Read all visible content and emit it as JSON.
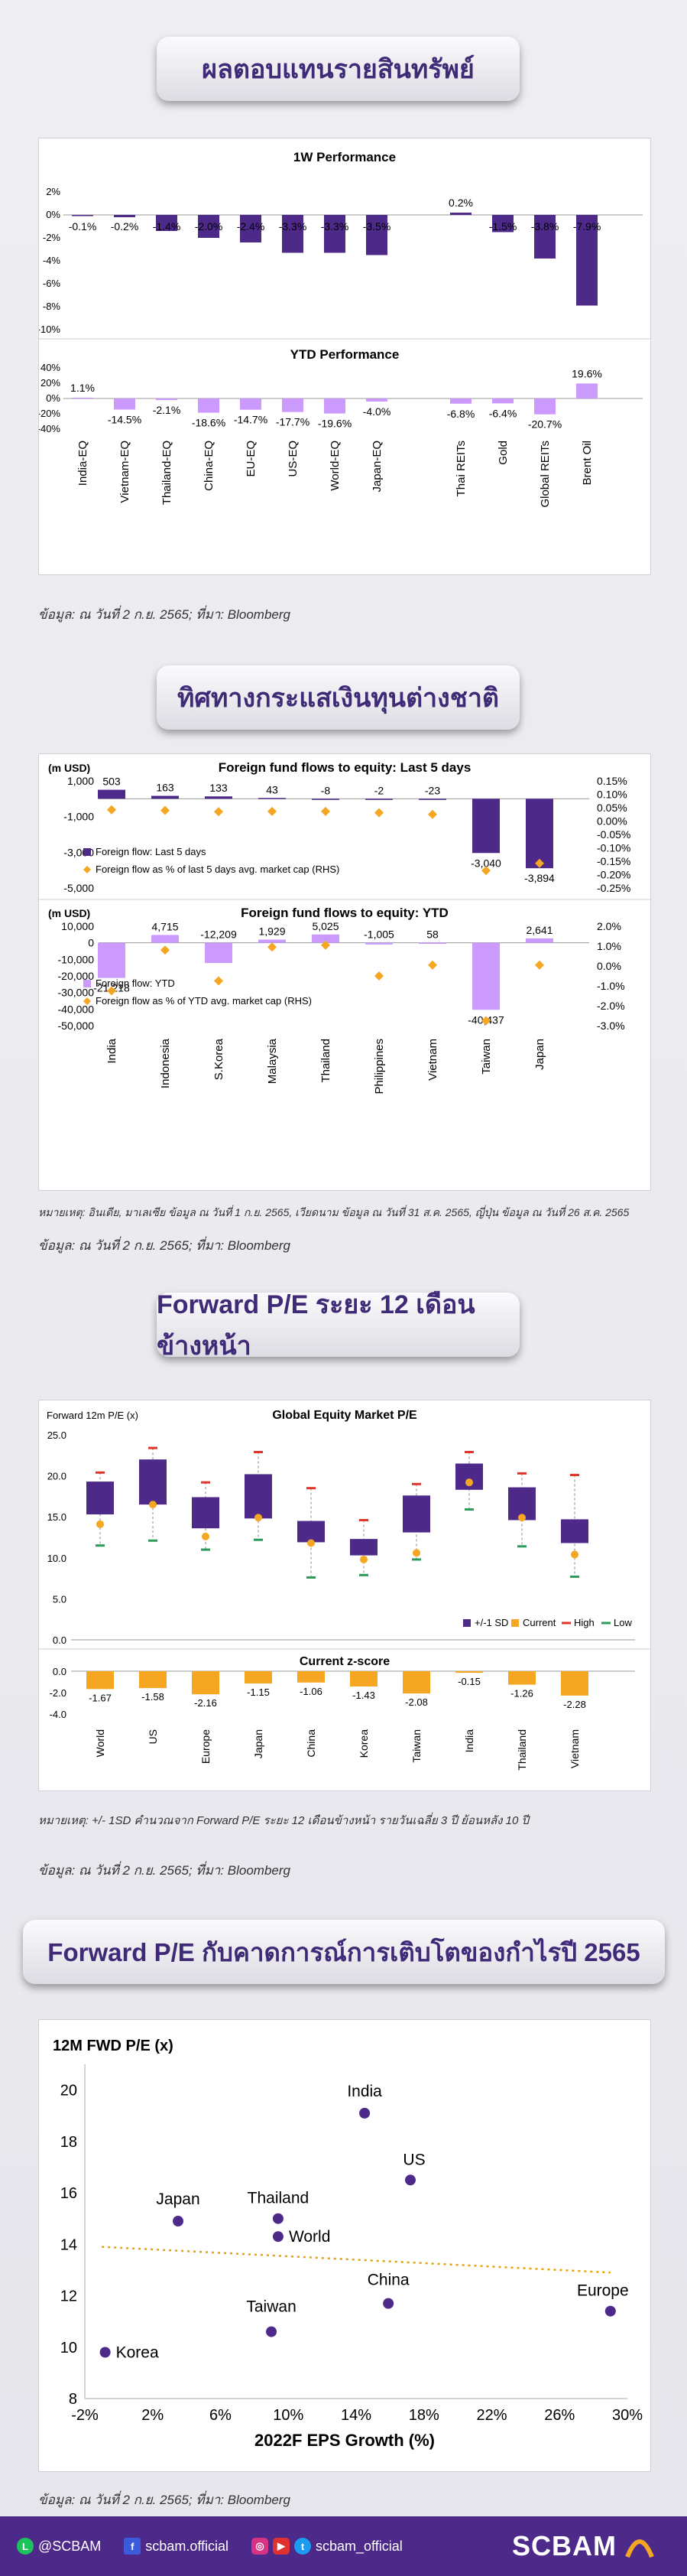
{
  "sections": {
    "s1": "ผลตอบแทนรายสินทรัพย์",
    "s2": "ทิศทางกระแสเงินทุนต่างชาติ",
    "s3": "Forward P/E ระยะ 12 เดือนข้างหน้า",
    "s4": "Forward P/E กับคาดการณ์การเติบโตของกำไรปี 2565"
  },
  "sources": {
    "s1": "ข้อมูล: ณ วันที่ 2 ก.ย. 2565; ที่มา: Bloomberg",
    "s2": "ข้อมูล: ณ วันที่ 2 ก.ย. 2565; ที่มา: Bloomberg",
    "s3": "ข้อมูล: ณ วันที่ 2 ก.ย. 2565; ที่มา: Bloomberg",
    "s4": "ข้อมูล: ณ วันที่ 2 ก.ย. 2565; ที่มา: Bloomberg"
  },
  "notes": {
    "n2": "หมายเหตุ: อินเดีย, มาเลเซีย ข้อมูล ณ วันที่ 1 ก.ย. 2565, เวียดนาม ข้อมูล ณ วันที่ 31 ส.ค. 2565, ญี่ปุ่น ข้อมูล ณ วันที่ 26 ส.ค. 2565",
    "n3": "หมายเหตุ: +/- 1SD คำนวณจาก Forward P/E ระยะ 12 เดือนข้างหน้า รายวันเฉลี่ย 3 ปี ย้อนหลัง 10 ปี"
  },
  "footer": {
    "line": "@SCBAM",
    "facebook": "scbam.official",
    "social": "scbam_official",
    "brand": "SCBAM"
  },
  "colors": {
    "purple": "#4d2a8a",
    "lavender": "#cc99ff",
    "orange": "#f5a623",
    "red": "#e0352b",
    "green": "#2e9a5a"
  },
  "chart_data": [
    {
      "type": "bar",
      "title": "1W Performance",
      "categories": [
        "India-EQ",
        "Vietnam-EQ",
        "Thailand-EQ",
        "China-EQ",
        "EU-EQ",
        "US-EQ",
        "World-EQ",
        "Japan-EQ",
        "Thai REITs",
        "Gold",
        "Global REITs",
        "Brent Oil"
      ],
      "values": [
        -0.1,
        -0.2,
        -1.4,
        -2.0,
        -2.4,
        -3.3,
        -3.3,
        -3.5,
        0.2,
        -1.5,
        -3.8,
        -7.9
      ],
      "labels": [
        "-0.1%",
        "-0.2%",
        "-1.4%",
        "-2.0%",
        "-2.4%",
        "-3.3%",
        "-3.3%",
        "-3.5%",
        "0.2%",
        "-1.5%",
        "-3.8%",
        "-7.9%"
      ],
      "yticks": [
        "2%",
        "0%",
        "-2%",
        "-4%",
        "-6%",
        "-8%",
        "-10%"
      ],
      "ylim": [
        -10,
        2
      ]
    },
    {
      "type": "bar",
      "title": "YTD Performance",
      "categories": [
        "India-EQ",
        "Vietnam-EQ",
        "Thailand-EQ",
        "China-EQ",
        "EU-EQ",
        "US-EQ",
        "World-EQ",
        "Japan-EQ",
        "Thai REITs",
        "Gold",
        "Global REITs",
        "Brent Oil"
      ],
      "values": [
        1.1,
        -14.5,
        -2.1,
        -18.6,
        -14.7,
        -17.7,
        -19.6,
        -4.0,
        -6.8,
        -6.4,
        -20.7,
        19.6
      ],
      "labels": [
        "1.1%",
        "-14.5%",
        "-2.1%",
        "-18.6%",
        "-14.7%",
        "-17.7%",
        "-19.6%",
        "-4.0%",
        "-6.8%",
        "-6.4%",
        "-20.7%",
        "19.6%"
      ],
      "yticks": [
        "40%",
        "20%",
        "0%",
        "-20%",
        "-40%"
      ],
      "ylim": [
        -40,
        40
      ]
    },
    {
      "type": "bar",
      "title": "Foreign fund flows to equity: Last 5 days",
      "unit": "(m USD)",
      "categories": [
        "India",
        "Indonesia",
        "S.Korea",
        "Malaysia",
        "Thailand",
        "Philippines",
        "Vietnam",
        "Taiwan",
        "Japan"
      ],
      "series": [
        {
          "name": "Foreign flow: Last 5 days",
          "values": [
            503,
            163,
            133,
            43,
            -8,
            -2,
            -23,
            -3040,
            -3894
          ]
        },
        {
          "name": "Foreign flow as % of last 5 days avg. market cap (RHS)",
          "values": [
            0.042,
            0.04,
            0.035,
            0.036,
            0.036,
            0.031,
            0.025,
            -0.185,
            -0.158
          ]
        }
      ],
      "labels": [
        "503",
        "163",
        "133",
        "43",
        "-8",
        "-2",
        "-23",
        "-3,040",
        "-3,894"
      ],
      "yticks": [
        "1,000",
        "-1,000",
        "-3,000",
        "-5,000"
      ],
      "ylim": [
        -5000,
        1000
      ],
      "y2ticks": [
        "0.15%",
        "0.10%",
        "0.05%",
        "0.00%",
        "-0.05%",
        "-0.10%",
        "-0.15%",
        "-0.20%",
        "-0.25%"
      ],
      "y2lim": [
        -0.25,
        0.15
      ]
    },
    {
      "type": "bar",
      "title": "Foreign fund flows to equity: YTD",
      "unit": "(m USD)",
      "categories": [
        "India",
        "Indonesia",
        "S.Korea",
        "Malaysia",
        "Thailand",
        "Philippines",
        "Vietnam",
        "Taiwan",
        "Japan"
      ],
      "series": [
        {
          "name": "Foreign flow: YTD",
          "values": [
            -21218,
            4715,
            -12209,
            1929,
            5025,
            -1005,
            58,
            -40437,
            2641
          ]
        },
        {
          "name": "Foreign flow as % of YTD avg. market cap (RHS)",
          "values": [
            -1.25,
            0.8,
            -0.75,
            0.95,
            1.05,
            -0.5,
            0.05,
            -2.75,
            0.05
          ]
        }
      ],
      "labels": [
        "-21,218",
        "4,715",
        "-12,209",
        "1,929",
        "5,025",
        "-1,005",
        "58",
        "-40,437",
        "2,641"
      ],
      "yticks": [
        "10,000",
        "0",
        "-10,000",
        "-20,000",
        "-30,000",
        "-40,000",
        "-50,000"
      ],
      "ylim": [
        -50000,
        10000
      ],
      "y2ticks": [
        "2.0%",
        "1.0%",
        "0.0%",
        "-1.0%",
        "-2.0%",
        "-3.0%"
      ],
      "y2lim": [
        -3,
        2
      ]
    },
    {
      "type": "bar",
      "title": "Global Equity Market P/E",
      "ylabel": "Forward 12m P/E (x)",
      "categories": [
        "World",
        "US",
        "Europe",
        "Japan",
        "China",
        "Korea",
        "Taiwan",
        "India",
        "Thailand",
        "Vietnam"
      ],
      "series": [
        {
          "name": "+/-1 SD",
          "low": [
            15.3,
            16.5,
            13.6,
            14.8,
            11.9,
            10.3,
            13.1,
            18.3,
            14.6,
            11.8
          ],
          "high": [
            19.3,
            22.0,
            17.4,
            20.2,
            14.5,
            12.3,
            17.6,
            21.5,
            18.6,
            14.7
          ]
        },
        {
          "name": "Current",
          "values": [
            14.1,
            16.5,
            12.6,
            14.9,
            11.8,
            9.8,
            10.6,
            19.2,
            14.9,
            10.4
          ]
        },
        {
          "name": "High",
          "values": [
            20.4,
            23.4,
            19.2,
            22.9,
            18.5,
            14.6,
            19.0,
            22.9,
            20.3,
            20.1
          ]
        },
        {
          "name": "Low",
          "values": [
            11.5,
            12.1,
            11.0,
            12.2,
            7.6,
            7.9,
            9.8,
            15.9,
            11.4,
            7.7
          ]
        }
      ],
      "yticks": [
        "25.0",
        "20.0",
        "15.0",
        "10.0",
        "5.0",
        "0.0"
      ],
      "ylim": [
        0,
        25
      ]
    },
    {
      "type": "bar",
      "title": "Current z-score",
      "categories": [
        "World",
        "US",
        "Europe",
        "Japan",
        "China",
        "Korea",
        "Taiwan",
        "India",
        "Thailand",
        "Vietnam"
      ],
      "values": [
        -1.67,
        -1.58,
        -2.16,
        -1.15,
        -1.06,
        -1.43,
        -2.08,
        -0.15,
        -1.26,
        -2.28
      ],
      "labels": [
        "-1.67",
        "-1.58",
        "-2.16",
        "-1.15",
        "-1.06",
        "-1.43",
        "-2.08",
        "-0.15",
        "-1.26",
        "-2.28"
      ],
      "yticks": [
        "0.0",
        "-2.0",
        "-4.0"
      ],
      "ylim": [
        -4,
        0
      ]
    },
    {
      "type": "scatter",
      "ylabel": "12M FWD P/E (x)",
      "xlabel": "2022F EPS Growth (%)",
      "points": [
        {
          "label": "India",
          "x": 14.5,
          "y": 19.1
        },
        {
          "label": "US",
          "x": 17.2,
          "y": 16.5
        },
        {
          "label": "Japan",
          "x": 3.5,
          "y": 14.9
        },
        {
          "label": "Thailand",
          "x": 9.4,
          "y": 15.0
        },
        {
          "label": "World",
          "x": 9.4,
          "y": 14.3
        },
        {
          "label": "Europe",
          "x": 29.0,
          "y": 11.4
        },
        {
          "label": "China",
          "x": 15.9,
          "y": 11.7
        },
        {
          "label": "Taiwan",
          "x": 9.0,
          "y": 10.6
        },
        {
          "label": "Korea",
          "x": -0.8,
          "y": 9.8
        }
      ],
      "trend": {
        "x": [
          -1,
          29
        ],
        "y": [
          13.9,
          12.9
        ]
      },
      "xticks": [
        "-2%",
        "2%",
        "6%",
        "10%",
        "14%",
        "18%",
        "22%",
        "26%",
        "30%"
      ],
      "xlim": [
        -2,
        30
      ],
      "yticks": [
        "20",
        "18",
        "16",
        "14",
        "12",
        "10",
        "8"
      ],
      "ylim": [
        8,
        21
      ]
    }
  ]
}
